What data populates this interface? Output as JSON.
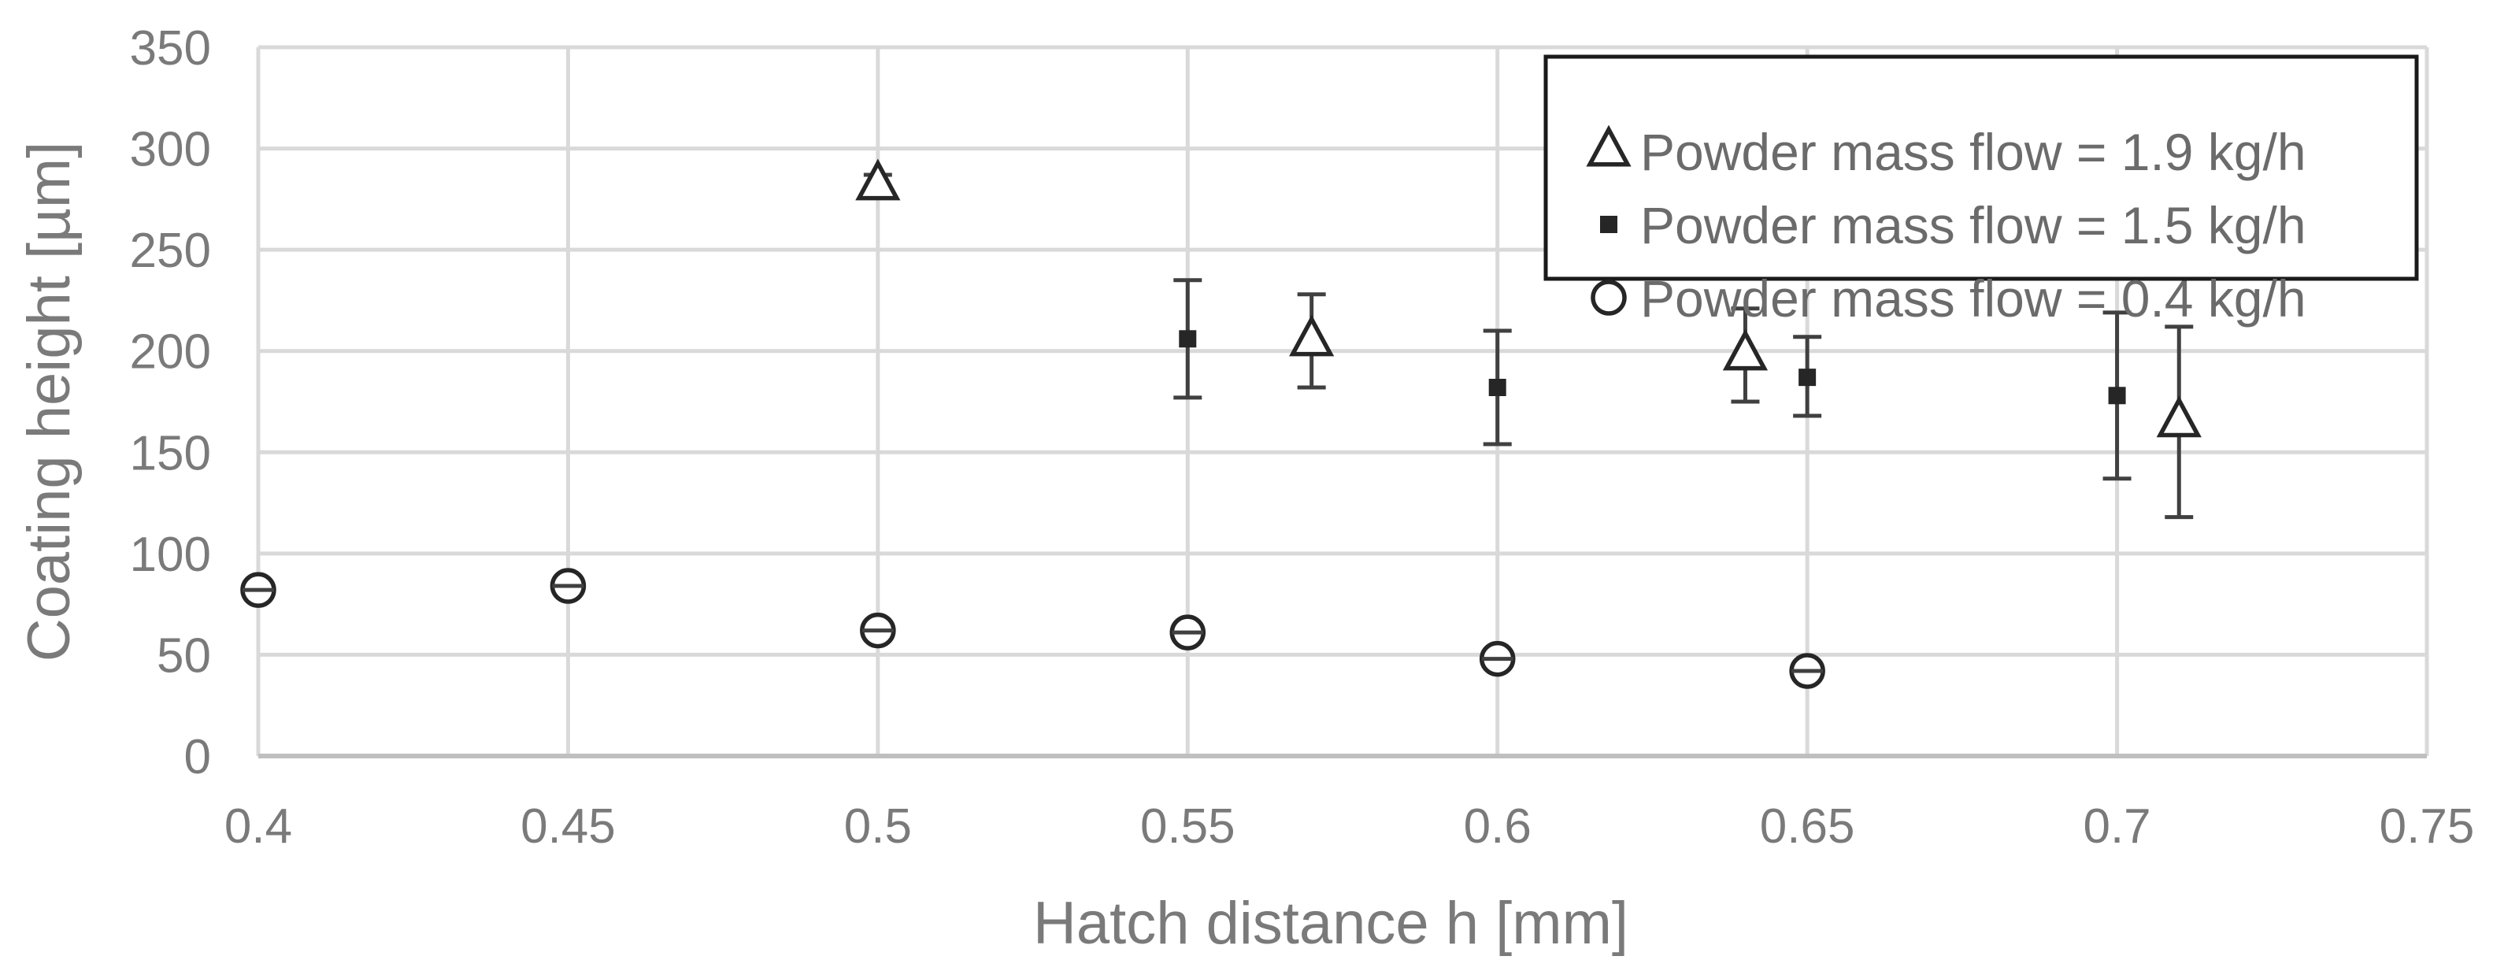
{
  "chart_data": {
    "type": "scatter",
    "xlabel": "Hatch distance h [mm]",
    "ylabel": "Coating  height [µm]",
    "xlim": [
      0.4,
      0.75
    ],
    "ylim": [
      0,
      350
    ],
    "xticks": [
      0.4,
      0.45,
      0.5,
      0.55,
      0.6,
      0.65,
      0.7,
      0.75
    ],
    "xtick_labels": [
      "0.4",
      "0.45",
      "0.5",
      "0.55",
      "0.6",
      "0.65",
      "0.7",
      "0.75"
    ],
    "yticks": [
      0,
      50,
      100,
      150,
      200,
      250,
      300,
      350
    ],
    "ytick_labels": [
      "0",
      "50",
      "100",
      "150",
      "200",
      "250",
      "300",
      "350"
    ],
    "grid": true,
    "legend_position": "top-right",
    "series": [
      {
        "name": "Powder mass flow = 1.9 kg/h",
        "marker": "triangle",
        "x": [
          0.5,
          0.57,
          0.64,
          0.71
        ],
        "y": [
          282,
          205,
          198,
          165
        ],
        "err_low": [
          277,
          182,
          175,
          118
        ],
        "err_high": [
          287,
          228,
          221,
          212
        ]
      },
      {
        "name": "Powder mass flow = 1.5 kg/h",
        "marker": "square",
        "x": [
          0.55,
          0.6,
          0.65,
          0.7
        ],
        "y": [
          206,
          182,
          187,
          178
        ],
        "err_low": [
          177,
          154,
          168,
          137
        ],
        "err_high": [
          235,
          210,
          207,
          219
        ]
      },
      {
        "name": "Powder mass flow = 0.4 kg/h",
        "marker": "circle",
        "x": [
          0.4,
          0.45,
          0.5,
          0.55,
          0.6,
          0.65
        ],
        "y": [
          82,
          84,
          62,
          61,
          48,
          42
        ],
        "err_low": [
          80,
          82,
          60,
          59,
          46,
          40
        ],
        "err_high": [
          84,
          86,
          64,
          63,
          50,
          44
        ]
      }
    ]
  },
  "colors": {
    "grid": "#d9d9d9",
    "axis": "#bfbfbf",
    "marker": "#262626",
    "errorbar": "#404040",
    "legend_border": "#1a1a1a"
  }
}
